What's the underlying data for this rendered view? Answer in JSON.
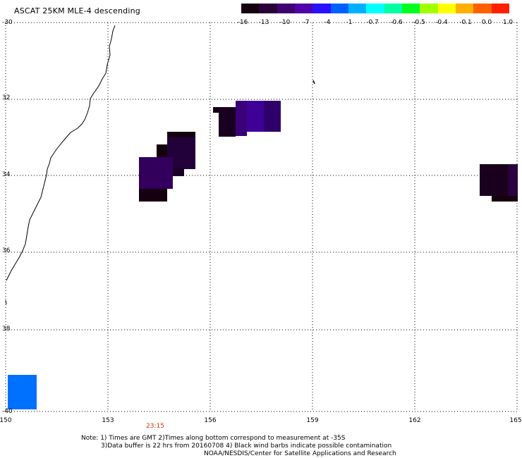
{
  "header": {
    "title": "ASCAT 25KM MLE-4 descending"
  },
  "colorbar": {
    "colors": [
      "#150010",
      "#2a0038",
      "#3f0070",
      "#4f00a8",
      "#2a10ff",
      "#0060ff",
      "#00b0ff",
      "#00ffff",
      "#00ffa0",
      "#00ff20",
      "#a0ff00",
      "#ffff00",
      "#ffb000",
      "#ff6000",
      "#ff2000"
    ],
    "labels": [
      "-16",
      "-13",
      "-10",
      "-7",
      "-4",
      "-1",
      "-0.7",
      "-0.6",
      "-0.5",
      "-0.4",
      "-0.1",
      "0.0",
      "1.0"
    ]
  },
  "map": {
    "lat_ticks": [
      "-30",
      "32",
      "34",
      "36",
      "38",
      "-40"
    ],
    "lon_ticks": [
      "150",
      "153",
      "156",
      "159",
      "162",
      "165"
    ]
  },
  "time_label": "23:15",
  "notes": {
    "line1": "Note: 1) Times are GMT 2)Times along bottom correspond to measurement at -35S",
    "line2": "3)Data buffer is 22 hrs from 20160708 4) Black wind barbs indicate possible contamination",
    "line3": "NOAA/NESDIS/Center for Satellite Applications and Research"
  }
}
